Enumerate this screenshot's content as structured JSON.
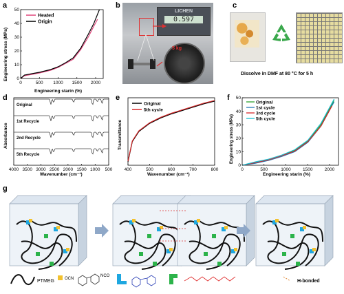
{
  "panels": {
    "a": {
      "label": "a",
      "ylabel": "Engineering stress (MPa)",
      "xlabel": "Engineering starin (%)",
      "legend": [
        "Heated",
        "Origin"
      ],
      "colors": {
        "Heated": "#e0457b",
        "Origin": "#000000"
      },
      "xticks": [
        "0",
        "500",
        "1000",
        "1500",
        "2000"
      ],
      "yticks": [
        "0",
        "10",
        "20",
        "30",
        "40",
        "50"
      ]
    },
    "b": {
      "label": "b",
      "device_text": "LICHEN",
      "readout": "0.597",
      "weight_text": "5 kg"
    },
    "c": {
      "label": "c",
      "caption": "Dissolve in DMF at 80 °C for 5 h"
    },
    "d": {
      "label": "d",
      "ylabel": "Absorbance",
      "xlabel": "Wavenumber (cm⁻¹)",
      "traces": [
        "Original",
        "1st Recycle",
        "2nd Recycle",
        "5th Recycle"
      ],
      "xticks": [
        "4000",
        "3500",
        "3000",
        "2500",
        "2000",
        "1500",
        "1000",
        "500"
      ]
    },
    "e": {
      "label": "e",
      "ylabel": "Transmittance",
      "xlabel": "Wavenumber (cm⁻¹)",
      "legend": [
        "Original",
        "5th cycle"
      ],
      "colors": {
        "Original": "#000000",
        "5th cycle": "#d62728"
      },
      "xticks": [
        "400",
        "500",
        "600",
        "700",
        "800"
      ]
    },
    "f": {
      "label": "f",
      "ylabel": "Engineering stress (MPa)",
      "xlabel": "Engineering starin (%)",
      "legend": [
        "Original",
        "1st cycle",
        "3rd cycle",
        "5th cycle"
      ],
      "colors": {
        "Original": "#2ca02c",
        "1st cycle": "#1f77b4",
        "3rd cycle": "#d62728",
        "5th cycle": "#17becf"
      },
      "xticks": [
        "0",
        "500",
        "1000",
        "1500",
        "2000"
      ],
      "yticks": [
        "0",
        "10",
        "20",
        "30",
        "40",
        "50"
      ]
    },
    "g": {
      "label": "g",
      "legend_items": [
        "PTMEG",
        "OCN",
        "NCO",
        "H-bonded"
      ]
    }
  },
  "chart_data": [
    {
      "type": "line",
      "panel": "a",
      "xlabel": "Engineering starin (%)",
      "ylabel": "Engineering stress (MPa)",
      "xlim": [
        0,
        2200
      ],
      "ylim": [
        0,
        50
      ],
      "series": [
        {
          "name": "Heated",
          "x": [
            0,
            100,
            300,
            500,
            800,
            1000,
            1200,
            1400,
            1600,
            1800,
            1950,
            2050
          ],
          "y": [
            0,
            2,
            3,
            4,
            6,
            8,
            11,
            14,
            21,
            30,
            38,
            43
          ]
        },
        {
          "name": "Origin",
          "x": [
            0,
            100,
            300,
            500,
            800,
            1000,
            1200,
            1400,
            1600,
            1800,
            1950,
            2100
          ],
          "y": [
            0,
            2.5,
            3.5,
            4.5,
            6.5,
            8.5,
            11.5,
            15,
            22,
            32,
            40,
            50
          ]
        }
      ]
    },
    {
      "type": "line",
      "panel": "e",
      "xlabel": "Wavenumber (cm⁻¹)",
      "ylabel": "Transmittance",
      "xlim": [
        400,
        800
      ],
      "series": [
        {
          "name": "Original",
          "x": [
            400,
            420,
            450,
            500,
            550,
            600,
            650,
            700,
            750,
            800
          ],
          "y": [
            0.05,
            0.35,
            0.5,
            0.62,
            0.7,
            0.76,
            0.81,
            0.86,
            0.91,
            0.95
          ]
        },
        {
          "name": "5th cycle",
          "x": [
            400,
            420,
            450,
            500,
            550,
            600,
            650,
            700,
            750,
            800
          ],
          "y": [
            0.06,
            0.36,
            0.51,
            0.63,
            0.71,
            0.77,
            0.82,
            0.87,
            0.92,
            0.96
          ]
        }
      ]
    },
    {
      "type": "line",
      "panel": "f",
      "xlabel": "Engineering starin (%)",
      "ylabel": "Engineering stress (MPa)",
      "xlim": [
        0,
        2200
      ],
      "ylim": [
        0,
        50
      ],
      "series": [
        {
          "name": "Original",
          "x": [
            0,
            300,
            600,
            900,
            1200,
            1500,
            1800,
            2100
          ],
          "y": [
            0,
            2,
            4,
            7,
            11,
            18,
            30,
            48
          ]
        },
        {
          "name": "1st cycle",
          "x": [
            0,
            300,
            600,
            900,
            1200,
            1500,
            1800,
            2100
          ],
          "y": [
            0,
            1.5,
            3.5,
            6.5,
            10,
            17,
            29,
            47
          ]
        },
        {
          "name": "3rd cycle",
          "x": [
            0,
            300,
            600,
            900,
            1200,
            1500,
            1800,
            2050
          ],
          "y": [
            0,
            2,
            4,
            7,
            10.5,
            17.5,
            29,
            44
          ]
        },
        {
          "name": "5th cycle",
          "x": [
            0,
            300,
            600,
            900,
            1200,
            1500,
            1800,
            2100
          ],
          "y": [
            0,
            2.5,
            4.5,
            7.5,
            11.5,
            18.5,
            31,
            49
          ]
        }
      ]
    }
  ]
}
